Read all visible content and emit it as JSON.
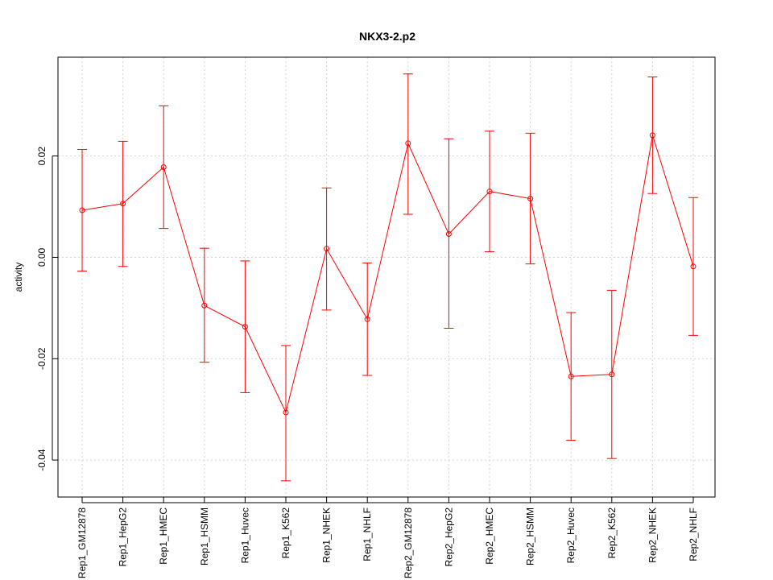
{
  "chart_data": {
    "type": "line",
    "title": "NKX3-2.p2",
    "xlabel": "",
    "ylabel": "activity",
    "categories": [
      "Rep1_GM12878",
      "Rep1_HepG2",
      "Rep1_HMEC",
      "Rep1_HSMM",
      "Rep1_Huvec",
      "Rep1_K562",
      "Rep1_NHEK",
      "Rep1_NHLF",
      "Rep2_GM12878",
      "Rep2_HepG2",
      "Rep2_HMEC",
      "Rep2_HSMM",
      "Rep2_Huvec",
      "Rep2_K562",
      "Rep2_NHEK",
      "Rep2_NHLF"
    ],
    "values": [
      0.0093,
      0.0106,
      0.0178,
      -0.0095,
      -0.0137,
      -0.0306,
      0.0017,
      -0.0122,
      0.0225,
      0.0046,
      0.013,
      0.0116,
      -0.0235,
      -0.0231,
      0.0241,
      -0.0018
    ],
    "error_upper": [
      0.0213,
      0.0229,
      0.0299,
      0.0018,
      -0.0007,
      -0.0174,
      0.0137,
      -0.0011,
      0.0362,
      0.0234,
      0.0249,
      0.0245,
      -0.0109,
      -0.0065,
      0.0356,
      0.0118
    ],
    "error_lower": [
      -0.0027,
      -0.0018,
      0.0057,
      -0.0207,
      -0.0267,
      -0.0441,
      -0.0104,
      -0.0233,
      0.0085,
      -0.014,
      0.0011,
      -0.0013,
      -0.0361,
      -0.0397,
      0.0126,
      -0.0154
    ],
    "yticks": [
      -0.04,
      -0.02,
      0.0,
      0.02
    ],
    "ytick_labels": [
      "-0.04",
      "-0.02",
      "0.00",
      "0.02"
    ],
    "ylim": [
      -0.0473,
      0.0395
    ],
    "grid": true,
    "color": "#ff0000"
  }
}
